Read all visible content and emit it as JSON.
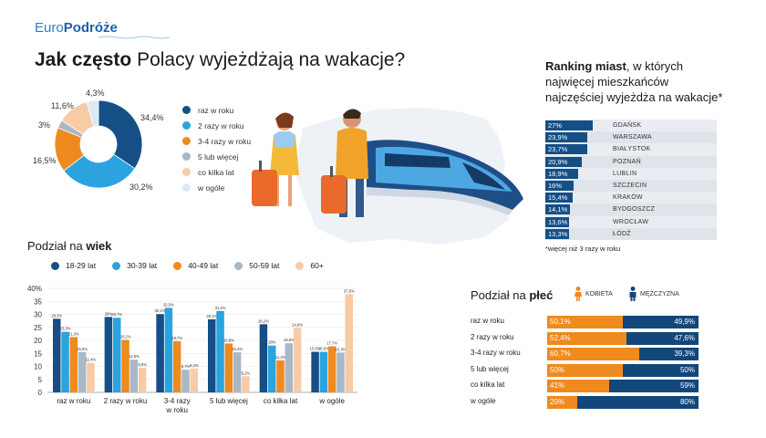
{
  "header": {
    "logo_euro": "Euro",
    "logo_podroze": "Podróże",
    "title_bold": "Jak często",
    "title_rest": " Polacy wyjeżdżają na wakacje?"
  },
  "colors": {
    "navy": "#154f86",
    "blue": "#2ba3df",
    "orange": "#ef8a1e",
    "grey": "#a8b8c8",
    "peach": "#f7cba6",
    "pale": "#dbe9f4",
    "female": "#ef8a1e",
    "male": "#13467a"
  },
  "chart_data": [
    {
      "type": "pie",
      "categories": [
        "raz w roku",
        "2 razy w roku",
        "3-4 razy w roku",
        "5 lub więcej",
        "co kilka lat",
        "w ogóle"
      ],
      "values": [
        34.4,
        30.2,
        16.5,
        3,
        11.6,
        4.3
      ],
      "value_labels": [
        "34,4%",
        "30,2%",
        "16,5%",
        "3%",
        "11,6%",
        "4,3%"
      ],
      "colors": [
        "#154f86",
        "#2ba3df",
        "#ef8a1e",
        "#a8b8c8",
        "#f7cba6",
        "#dbe9f4"
      ]
    },
    {
      "type": "bar",
      "title_prefix": "Podział na ",
      "title_bold": "wiek",
      "categories": [
        "raz w roku",
        "2 razy w roku",
        "3-4 razy w roku",
        "5 lub więcej",
        "co kilka lat",
        "w ogóle"
      ],
      "category_lines": [
        [
          "raz w roku"
        ],
        [
          "2 razy w roku"
        ],
        [
          "3-4 razy",
          "w roku"
        ],
        [
          "5 lub więcej"
        ],
        [
          "co kilka lat"
        ],
        [
          "w ogóle"
        ]
      ],
      "series": [
        {
          "name": "18-29 lat",
          "color": "#154f86",
          "values": [
            28.3,
            29.0,
            30.1,
            28.1,
            26.2,
            15.6
          ],
          "labels": [
            "28,3%",
            "29%",
            "30,1%",
            "28,1%",
            "26,2%",
            "15,6%"
          ]
        },
        {
          "name": "30-39 lat",
          "color": "#2ba3df",
          "values": [
            23.3,
            28.7,
            32.5,
            31.3,
            18.0,
            15.6
          ],
          "labels": [
            "23,3%",
            "28,7%",
            "32,5%",
            "31,3%",
            "18%",
            "15,6%"
          ]
        },
        {
          "name": "40-49 lat",
          "color": "#ef8a1e",
          "values": [
            21.3,
            20.2,
            19.7,
            18.8,
            12.3,
            17.7
          ],
          "labels": [
            "21,3%",
            "20,2%",
            "19,7%",
            "18,8%",
            "12,3%",
            "17,7%"
          ]
        },
        {
          "name": "50-59 lat",
          "color": "#a8b8c8",
          "values": [
            15.5,
            12.6,
            8.7,
            15.4,
            18.9,
            15.3
          ],
          "labels": [
            "15,5%",
            "12,6%",
            "8,7%",
            "15,4%",
            "18,9%",
            "15,3%"
          ]
        },
        {
          "name": "60+",
          "color": "#f7cba6",
          "values": [
            11.4,
            9.5,
            9.2,
            6.2,
            24.8,
            37.8
          ],
          "labels": [
            "11,4%",
            "9,5%",
            "9,2%",
            "6,2%",
            "24,8%",
            "37,8%"
          ]
        }
      ],
      "ylim": [
        0,
        40
      ],
      "yticks": [
        "0",
        "5",
        "10",
        "15",
        "20",
        "25",
        "30",
        "35",
        "40%"
      ],
      "grid": true
    },
    {
      "type": "bar",
      "orientation": "horizontal",
      "title_bold": "Ranking miast",
      "title_rest": ", w których najwięcej mieszkańców najczęściej wyjeżdża na wakacje*",
      "categories": [
        "GDAŃSK",
        "WARSZAWA",
        "BIAŁYSTOK",
        "POZNAŃ",
        "LUBLIN",
        "SZCZECIN",
        "KRAKÓW",
        "BYDGOSZCZ",
        "WROCŁAW",
        "ŁÓDŹ"
      ],
      "values": [
        27,
        23.9,
        23.7,
        20.9,
        18.9,
        16,
        15.4,
        14.1,
        13.6,
        13.3
      ],
      "value_labels": [
        "27%",
        "23,9%",
        "23,7%",
        "20,9%",
        "18,9%",
        "16%",
        "15,4%",
        "14,1%",
        "13,6%",
        "13,3%"
      ],
      "note": "*więcej niż 3 razy w roku"
    },
    {
      "type": "bar",
      "orientation": "horizontal",
      "stacked": true,
      "title_prefix": "Podział na ",
      "title_bold": "płeć",
      "series_names": [
        "KOBIETA",
        "MĘŻCZYZNA"
      ],
      "categories": [
        "raz w roku",
        "2 razy w roku",
        "3-4 razy w roku",
        "5 lub więcej",
        "co kilka lat",
        "w ogóle"
      ],
      "female": [
        50.1,
        52.4,
        60.7,
        50,
        41,
        20
      ],
      "male": [
        49.9,
        47.6,
        39.3,
        50,
        59,
        80
      ],
      "female_labels": [
        "50,1%",
        "52,4%",
        "60,7%",
        "50%",
        "41%",
        "20%"
      ],
      "male_labels": [
        "49,9%",
        "47,6%",
        "39,3%",
        "50%",
        "59%",
        "80%"
      ]
    }
  ]
}
